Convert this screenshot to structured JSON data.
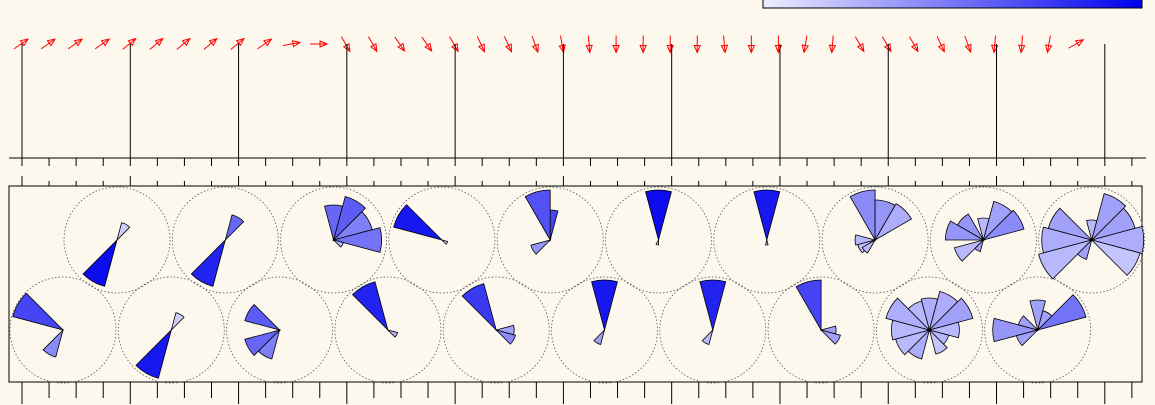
{
  "chart_data": {
    "type": "wind-rose-timeseries",
    "title": "",
    "colorbar": {
      "visible": true,
      "color_low": "#eeeeff",
      "color_high": "#0000ee",
      "placement": "top-right"
    },
    "colors": {
      "background": "#fdf8ee",
      "arrow": "#ff0000",
      "sector_low": "#e6e6ff",
      "sector_high": "#0000ee",
      "axis": "#000000",
      "circle": "#555555"
    },
    "wind_arrow_directions_deg": [
      55,
      55,
      55,
      55,
      50,
      50,
      50,
      50,
      50,
      55,
      80,
      90,
      150,
      150,
      145,
      145,
      150,
      155,
      155,
      160,
      170,
      175,
      180,
      180,
      180,
      180,
      175,
      180,
      180,
      190,
      185,
      150,
      150,
      150,
      155,
      160,
      185,
      185,
      190,
      60
    ],
    "rose_sector_half_width_deg": 15,
    "roses_top": [
      {
        "sectors": [
          [
            30,
            18,
            0.1
          ],
          [
            210,
            48,
            0.95
          ]
        ]
      },
      {
        "sectors": [
          [
            30,
            26,
            0.55
          ],
          [
            210,
            48,
            0.85
          ]
        ]
      },
      {
        "sectors": [
          [
            0,
            35,
            0.55
          ],
          [
            30,
            45,
            0.6
          ],
          [
            60,
            40,
            0.45
          ],
          [
            90,
            48,
            0.5
          ],
          [
            120,
            10,
            0.2
          ]
        ]
      },
      {
        "sectors": [
          [
            300,
            50,
            0.9
          ],
          [
            120,
            6,
            0.1
          ]
        ]
      },
      {
        "sectors": [
          [
            0,
            30,
            0.7
          ],
          [
            345,
            50,
            0.65
          ],
          [
            240,
            20,
            0.35
          ]
        ]
      },
      {
        "sectors": [
          [
            0,
            50,
            0.95
          ],
          [
            195,
            5,
            0.1
          ]
        ]
      },
      {
        "sectors": [
          [
            0,
            50,
            0.9
          ],
          [
            180,
            5,
            0.1
          ]
        ]
      },
      {
        "sectors": [
          [
            345,
            50,
            0.4
          ],
          [
            15,
            40,
            0.35
          ],
          [
            45,
            42,
            0.25
          ],
          [
            270,
            20,
            0.2
          ],
          [
            240,
            18,
            0.15
          ],
          [
            225,
            15,
            0.2
          ]
        ]
      },
      {
        "sectors": [
          [
            0,
            22,
            0.2
          ],
          [
            30,
            40,
            0.3
          ],
          [
            60,
            42,
            0.4
          ],
          [
            315,
            30,
            0.35
          ],
          [
            285,
            38,
            0.35
          ],
          [
            240,
            30,
            0.2
          ],
          [
            210,
            12,
            0.3
          ]
        ]
      },
      {
        "sectors": [
          [
            0,
            20,
            0.2
          ],
          [
            60,
            45,
            0.3
          ],
          [
            90,
            52,
            0.25
          ],
          [
            120,
            50,
            0.15
          ],
          [
            300,
            45,
            0.3
          ],
          [
            270,
            50,
            0.25
          ],
          [
            240,
            55,
            0.2
          ],
          [
            210,
            20,
            0.3
          ],
          [
            30,
            48,
            0.3
          ]
        ]
      }
    ],
    "roses_bottom": [
      {
        "sectors": [
          [
            300,
            52,
            0.7
          ],
          [
            210,
            28,
            0.4
          ]
        ]
      },
      {
        "sectors": [
          [
            30,
            18,
            0.1
          ],
          [
            210,
            50,
            0.9
          ]
        ]
      },
      {
        "sectors": [
          [
            300,
            36,
            0.6
          ],
          [
            240,
            36,
            0.55
          ],
          [
            210,
            30,
            0.45
          ]
        ]
      },
      {
        "sectors": [
          [
            330,
            50,
            0.85
          ],
          [
            120,
            10,
            0.2
          ]
        ]
      },
      {
        "sectors": [
          [
            330,
            48,
            0.75
          ],
          [
            120,
            20,
            0.4
          ],
          [
            90,
            18,
            0.3
          ]
        ]
      },
      {
        "sectors": [
          [
            0,
            50,
            0.9
          ],
          [
            210,
            15,
            0.3
          ]
        ]
      },
      {
        "sectors": [
          [
            0,
            50,
            0.85
          ],
          [
            210,
            15,
            0.2
          ]
        ]
      },
      {
        "sectors": [
          [
            345,
            50,
            0.7
          ],
          [
            120,
            20,
            0.3
          ],
          [
            90,
            15,
            0.3
          ]
        ]
      },
      {
        "sectors": [
          [
            0,
            32,
            0.25
          ],
          [
            30,
            40,
            0.25
          ],
          [
            60,
            45,
            0.3
          ],
          [
            90,
            30,
            0.2
          ],
          [
            120,
            20,
            0.2
          ],
          [
            150,
            25,
            0.15
          ],
          [
            210,
            30,
            0.25
          ],
          [
            240,
            35,
            0.2
          ],
          [
            270,
            38,
            0.2
          ],
          [
            300,
            45,
            0.25
          ],
          [
            330,
            30,
            0.2
          ]
        ]
      },
      {
        "sectors": [
          [
            60,
            50,
            0.5
          ],
          [
            0,
            30,
            0.3
          ],
          [
            30,
            20,
            0.3
          ],
          [
            270,
            45,
            0.35
          ],
          [
            240,
            22,
            0.3
          ],
          [
            300,
            20,
            0.3
          ]
        ]
      }
    ]
  }
}
